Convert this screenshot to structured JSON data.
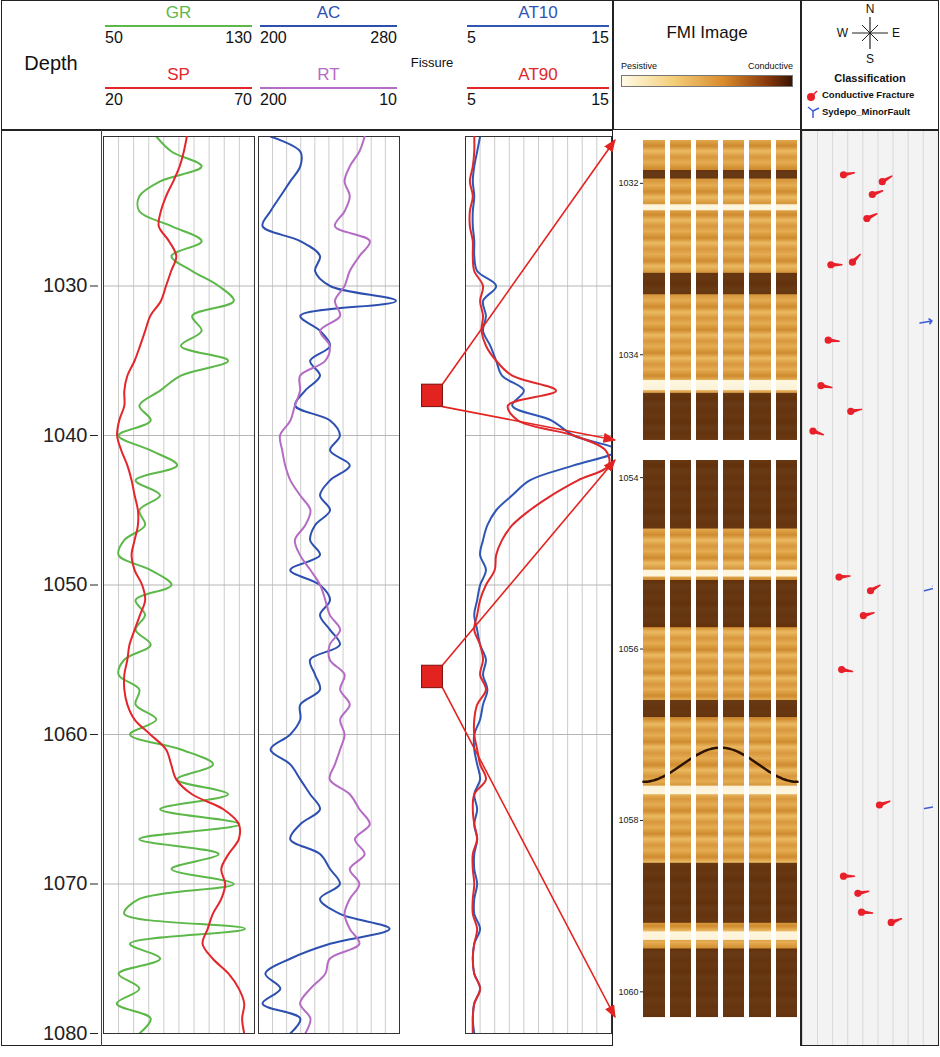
{
  "chart_data": {
    "type": "well_log",
    "grid": true,
    "tick_labels": "y",
    "depth": {
      "label": "Depth",
      "ylim": [
        1020,
        1080
      ],
      "yticks": [
        1030,
        1040,
        1050,
        1060,
        1070,
        1080
      ]
    },
    "depths": [
      1020,
      1021,
      1022,
      1023,
      1024,
      1025,
      1026,
      1027,
      1028,
      1029,
      1030,
      1031,
      1032,
      1033,
      1034,
      1035,
      1036,
      1037,
      1038,
      1039,
      1040,
      1041,
      1042,
      1043,
      1044,
      1045,
      1046,
      1047,
      1048,
      1049,
      1050,
      1051,
      1052,
      1053,
      1054,
      1055,
      1056,
      1057,
      1058,
      1059,
      1060,
      1061,
      1062,
      1063,
      1064,
      1065,
      1066,
      1067,
      1068,
      1069,
      1070,
      1071,
      1072,
      1073,
      1074,
      1075,
      1076,
      1077,
      1078,
      1079,
      1080
    ],
    "tracks": [
      {
        "curves": [
          {
            "name": "GR",
            "color": "#5cb848",
            "xlim": [
              50,
              130
            ],
            "xticks": [
              50,
              130
            ],
            "values": [
              78,
              86,
              102,
              80,
              69,
              69,
              86,
              102,
              86,
              97,
              111,
              119,
              97,
              102,
              91,
              116,
              91,
              80,
              69,
              75,
              58,
              75,
              89,
              67,
              80,
              69,
              72,
              61,
              58,
              75,
              86,
              67,
              72,
              67,
              75,
              61,
              58,
              69,
              67,
              78,
              64,
              91,
              108,
              89,
              116,
              80,
              122,
              69,
              111,
              86,
              119,
              69,
              61,
              125,
              64,
              80,
              58,
              69,
              57,
              75,
              69
            ]
          },
          {
            "name": "SP",
            "color": "#e3262b",
            "xlim": [
              20,
              70
            ],
            "xticks": [
              20,
              70
            ],
            "values": [
              47.6,
              46.6,
              45.2,
              43.1,
              40.7,
              39,
              38.3,
              41.7,
              44.1,
              42.4,
              40.7,
              39,
              35.5,
              33.8,
              32.1,
              30.3,
              27.9,
              26.9,
              26.9,
              25.2,
              24.5,
              25.9,
              27.9,
              29.3,
              30.3,
              31.4,
              31.4,
              30.3,
              29.3,
              30.3,
              32.8,
              33.8,
              32.1,
              30.3,
              28.6,
              27.9,
              26.9,
              26.9,
              27.9,
              30.3,
              35.5,
              40.7,
              42.4,
              44.1,
              49.3,
              59.7,
              64.8,
              64.8,
              61.4,
              59,
              60.3,
              59,
              56.2,
              54.5,
              52.8,
              56.2,
              61.4,
              64.8,
              66.6,
              65.9,
              66.6
            ]
          }
        ]
      },
      {
        "curves": [
          {
            "name": "AC",
            "color": "#2d4fb0",
            "xlim": [
              200,
              280
            ],
            "xticks": [
              200,
              280
            ],
            "values": [
              206.8,
              223.7,
              223.7,
              218,
              212.4,
              206.8,
              202.3,
              223.7,
              234.9,
              232.1,
              240.6,
              278,
              223.7,
              234.9,
              240.6,
              229.3,
              234.9,
              226.5,
              220.8,
              240.6,
              246.2,
              240.6,
              251.8,
              240.6,
              234.9,
              240.6,
              232.1,
              229.3,
              234.9,
              218,
              234.9,
              240.6,
              234.9,
              240.6,
              246.2,
              229.3,
              232.1,
              234.9,
              223.7,
              223.7,
              218,
              206.8,
              218,
              223.7,
              229.3,
              234.9,
              223.7,
              218,
              234.9,
              240.6,
              246.2,
              234.9,
              246.2,
              274.4,
              240.6,
              218,
              203.9,
              212.4,
              202.3,
              223.7,
              218
            ]
          },
          {
            "name": "RT",
            "color": "#b46cc4",
            "xlim": [
              200,
              10
            ],
            "xticks": [
              200,
              10
            ],
            "values": [
              57,
              64,
              77,
              84,
              77,
              84,
              97,
              50,
              64,
              77,
              84,
              97,
              90,
              117,
              104,
              110,
              144,
              144,
              151,
              157,
              171,
              168,
              164,
              157,
              144,
              130,
              137,
              151,
              144,
              130,
              117,
              110,
              104,
              90,
              104,
              104,
              84,
              90,
              77,
              90,
              84,
              90,
              97,
              104,
              77,
              64,
              50,
              70,
              57,
              77,
              64,
              77,
              84,
              77,
              64,
              104,
              110,
              130,
              144,
              130,
              137
            ]
          }
        ]
      },
      {
        "curves": [
          {
            "name": "AT10",
            "color": "#2f55b5",
            "xlim": [
              5,
              15
            ],
            "xticks": [
              5,
              15
            ],
            "values": [
              6.0,
              5.8,
              5.6,
              5.5,
              5.6,
              5.5,
              5.5,
              5.6,
              5.6,
              5.8,
              7.1,
              6.2,
              6.4,
              6.2,
              6.7,
              7.1,
              7.5,
              9.0,
              8.2,
              10.9,
              12.4,
              15.4,
              12.4,
              9.4,
              8.2,
              7.1,
              6.5,
              6.2,
              6.0,
              6.4,
              6.0,
              5.8,
              5.6,
              5.8,
              6.0,
              6.4,
              6.2,
              6.5,
              6.2,
              6.0,
              5.6,
              5.6,
              5.8,
              6.0,
              5.6,
              5.8,
              5.6,
              5.8,
              5.6,
              5.6,
              5.8,
              5.6,
              5.6,
              6.0,
              5.6,
              5.5,
              5.6,
              6.0,
              5.6,
              5.5,
              5.6
            ]
          },
          {
            "name": "AT90",
            "color": "#e0282b",
            "xlim": [
              5,
              15
            ],
            "xticks": [
              5,
              15
            ],
            "values": [
              5.6,
              5.6,
              5.5,
              5.3,
              5.5,
              5.3,
              5.3,
              5.5,
              5.5,
              5.6,
              6.2,
              6.0,
              6.2,
              6.1,
              6.4,
              7.1,
              8.2,
              11.2,
              7.9,
              8.6,
              12.4,
              14.6,
              14.8,
              12.7,
              10.9,
              9.4,
              8.2,
              7.5,
              7.1,
              7.0,
              6.4,
              6.0,
              5.8,
              5.6,
              6.0,
              6.2,
              6.0,
              6.4,
              5.8,
              5.6,
              5.6,
              5.8,
              6.0,
              6.4,
              5.6,
              5.5,
              5.6,
              5.8,
              5.5,
              5.5,
              5.6,
              5.5,
              5.5,
              5.8,
              5.6,
              5.5,
              5.6,
              6.0,
              5.6,
              5.5,
              5.5
            ]
          }
        ]
      }
    ],
    "fissure": {
      "label": "Fissure",
      "color": "#e3231f",
      "intervals": [
        [
          1036.6,
          1038.1
        ],
        [
          1055.4,
          1056.9
        ]
      ]
    },
    "fmi": {
      "title": "FMI Image",
      "scale_labels": [
        "Pesistive",
        "Conductive"
      ],
      "segments": [
        {
          "ylim": [
            1031.5,
            1035
          ],
          "yticks": [
            1032,
            1034
          ],
          "conductive_bands": [
            [
              1031.85,
              1031.95
            ],
            [
              1033.05,
              1033.3
            ],
            [
              1034.45,
              1035
            ]
          ],
          "resistive_bands": [
            [
              1032.25,
              1032.32
            ],
            [
              1034.3,
              1034.42
            ]
          ]
        },
        {
          "ylim": [
            1053.8,
            1060.3
          ],
          "yticks": [
            1054,
            1056,
            1058,
            1060
          ],
          "conductive_bands": [
            [
              1053.8,
              1054.6
            ],
            [
              1055.2,
              1055.75
            ],
            [
              1056.6,
              1056.8
            ],
            [
              1058.5,
              1059.2
            ],
            [
              1059.5,
              1060.3
            ]
          ],
          "resistive_bands": [
            [
              1055.08,
              1055.16
            ],
            [
              1057.6,
              1057.7
            ],
            [
              1059.3,
              1059.4
            ]
          ],
          "sinusoids": [
            [
              1057.15,
              1057.55
            ]
          ]
        }
      ]
    },
    "classification": {
      "title": "Classification",
      "compass": [
        "N",
        "E",
        "S",
        "W"
      ],
      "xlim": [
        0,
        90
      ],
      "series": [
        {
          "name": "Conductive Fracture",
          "color": "#e8202a",
          "marker": "tadpole",
          "points": [
            {
              "depth": 1031.9,
              "dip": 25.7,
              "azimuth": 80
            },
            {
              "depth": 1031.98,
              "dip": 53.4,
              "azimuth": 60
            },
            {
              "depth": 1032.13,
              "dip": 46.3,
              "azimuth": 70
            },
            {
              "depth": 1032.41,
              "dip": 42.4,
              "azimuth": 65
            },
            {
              "depth": 1032.92,
              "dip": 32.1,
              "azimuth": 45
            },
            {
              "depth": 1032.95,
              "dip": 16.7,
              "azimuth": 90
            },
            {
              "depth": 1033.83,
              "dip": 14.8,
              "azimuth": 95
            },
            {
              "depth": 1034.36,
              "dip": 9.6,
              "azimuth": 100
            },
            {
              "depth": 1034.66,
              "dip": 30.9,
              "azimuth": 80
            },
            {
              "depth": 1034.89,
              "dip": 3.9,
              "azimuth": 110
            },
            {
              "depth": 1055.16,
              "dip": 22.5,
              "azimuth": 85
            },
            {
              "depth": 1055.32,
              "dip": 45,
              "azimuth": 60
            },
            {
              "depth": 1055.61,
              "dip": 39.9,
              "azimuth": 75
            },
            {
              "depth": 1056.24,
              "dip": 24.4,
              "azimuth": 100
            },
            {
              "depth": 1057.82,
              "dip": 51.4,
              "azimuth": 70
            },
            {
              "depth": 1058.65,
              "dip": 25.7,
              "azimuth": 90
            },
            {
              "depth": 1058.85,
              "dip": 36,
              "azimuth": 80
            },
            {
              "depth": 1059.07,
              "dip": 38.6,
              "azimuth": 95
            },
            {
              "depth": 1059.19,
              "dip": 59.8,
              "azimuth": 70
            }
          ]
        },
        {
          "name": "Sydepo_MinorFault",
          "color": "#3d5bd9",
          "marker": "arrow",
          "points": [
            {
              "depth": 1033.63,
              "dip": 80.4,
              "azimuth": 80
            },
            {
              "depth": 1055.32,
              "dip": 83.6,
              "azimuth": 75
            },
            {
              "depth": 1057.86,
              "dip": 83.6,
              "azimuth": 80
            }
          ]
        }
      ]
    }
  }
}
